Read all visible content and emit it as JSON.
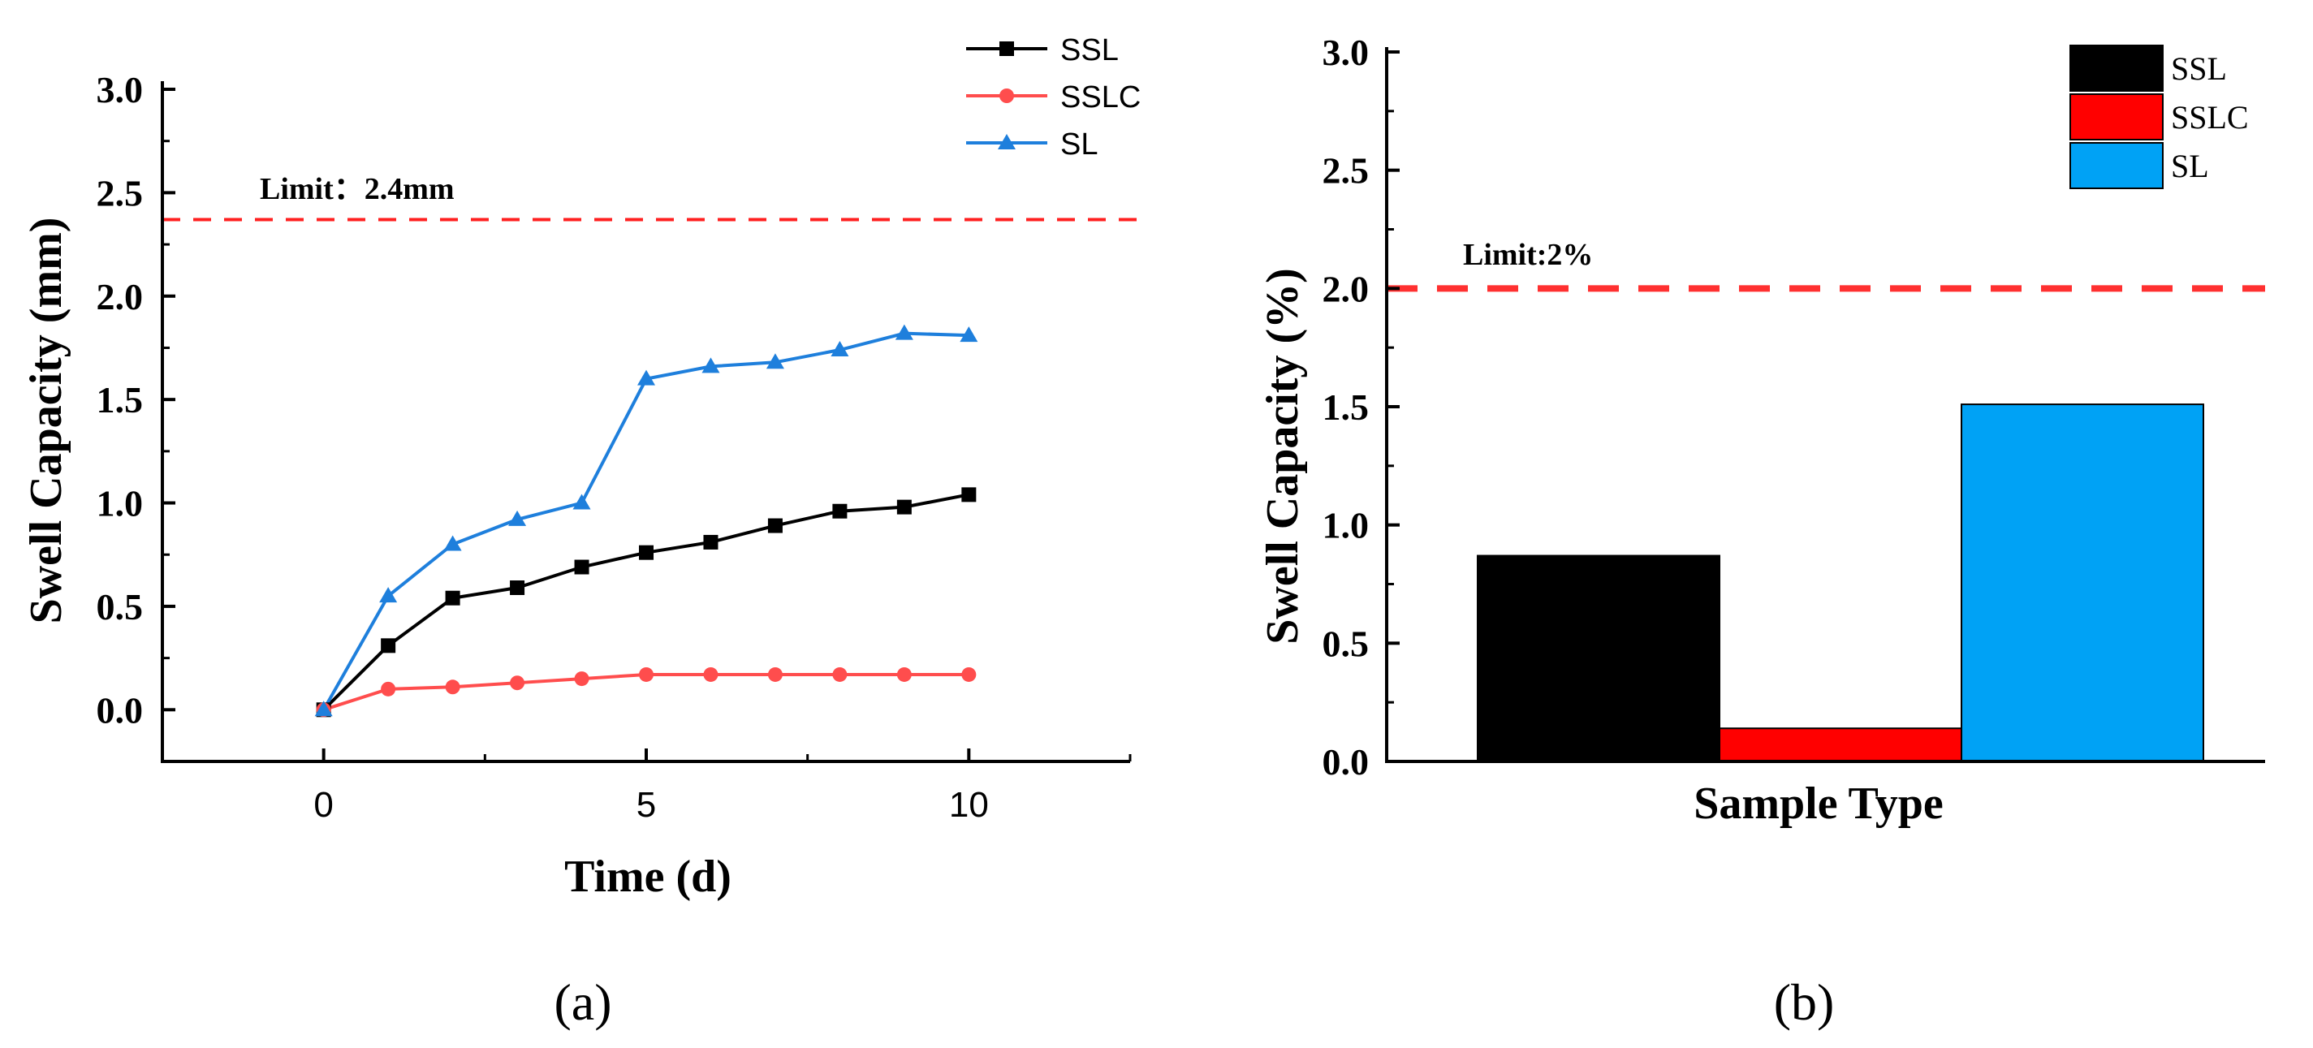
{
  "chart_data": [
    {
      "type": "line",
      "panel": "(a)",
      "xlabel": "Time (d)",
      "ylabel": "Swell Capacity (mm)",
      "xlim": [
        -2.5,
        12.5
      ],
      "ylim": [
        -0.25,
        3.0
      ],
      "xticks": [
        0,
        5,
        10
      ],
      "yticks": [
        "0.0",
        "0.5",
        "1.0",
        "1.5",
        "2.0",
        "2.5",
        "3.0"
      ],
      "limit_label": "Limit：2.4mm",
      "limit_value": 2.37,
      "limit_color": "#ff2020",
      "x": [
        0,
        1,
        2,
        3,
        4,
        5,
        6,
        7,
        8,
        9,
        10
      ],
      "series": [
        {
          "name": "SSL",
          "color": "#000000",
          "marker": "square",
          "values": [
            0.0,
            0.31,
            0.54,
            0.59,
            0.69,
            0.76,
            0.81,
            0.89,
            0.96,
            0.98,
            1.04
          ]
        },
        {
          "name": "SSLC",
          "color": "#ff4d4d",
          "marker": "circle",
          "values": [
            0.0,
            0.1,
            0.11,
            0.13,
            0.15,
            0.17,
            0.17,
            0.17,
            0.17,
            0.17,
            0.17
          ]
        },
        {
          "name": "SL",
          "color": "#1e7fdc",
          "marker": "triangle",
          "values": [
            0.0,
            0.55,
            0.8,
            0.92,
            1.0,
            1.6,
            1.66,
            1.68,
            1.74,
            1.82,
            1.81
          ]
        }
      ]
    },
    {
      "type": "bar",
      "panel": "(b)",
      "xlabel": "Sample Type",
      "ylabel": "Swell Capacity (%)",
      "ylim": [
        0.0,
        3.0
      ],
      "yticks": [
        "0.0",
        "0.5",
        "1.0",
        "1.5",
        "2.0",
        "2.5",
        "3.0"
      ],
      "limit_label": "Limit:2%",
      "limit_value": 2.0,
      "limit_color": "#ff3030",
      "categories": [
        "SSL",
        "SSLC",
        "SL"
      ],
      "values": [
        0.87,
        0.14,
        1.51
      ],
      "colors": [
        "#000000",
        "#ff0000",
        "#00a2f5"
      ]
    }
  ]
}
